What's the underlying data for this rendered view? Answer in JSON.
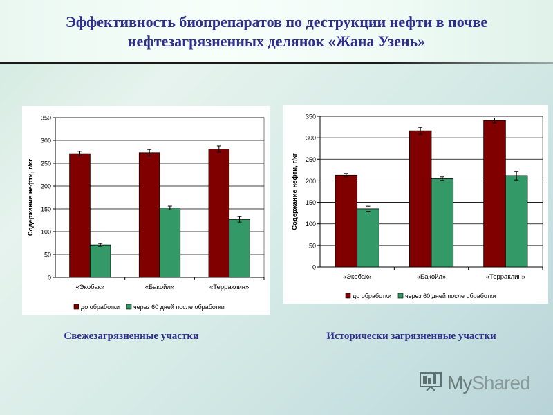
{
  "slide": {
    "title": "Эффективность биопрепаратов по деструкции нефти в почве нефтезагрязненных делянок «Жана Узень»",
    "caption_left": "Свежезагрязненные участки",
    "caption_right": "Исторически загрязненные участки",
    "logo": {
      "part1": "My",
      "part2": "Shared"
    }
  },
  "colors": {
    "before": "#800000",
    "after": "#339966"
  },
  "chart_data": [
    {
      "type": "bar",
      "categories": [
        "«Экобак»",
        "«Бакойл»",
        "«Терраклин»"
      ],
      "series": [
        {
          "name": "до обработки",
          "values": [
            271,
            273,
            281
          ],
          "errors": [
            5,
            7,
            7
          ]
        },
        {
          "name": "через 60 дней после обработки",
          "values": [
            71,
            152,
            127
          ],
          "errors": [
            3,
            4,
            6
          ]
        }
      ],
      "ylabel": "Содержание нефти, г/кг",
      "xlabel": "",
      "ylim": [
        0,
        350
      ],
      "yticks": [
        0,
        50,
        100,
        150,
        200,
        250,
        300,
        350
      ],
      "grid": true,
      "legend": "bottom"
    },
    {
      "type": "bar",
      "categories": [
        "«Экобак»",
        "«Бакойл»",
        "«Терраклин»"
      ],
      "series": [
        {
          "name": "до обработки",
          "values": [
            213,
            316,
            340
          ],
          "errors": [
            4,
            8,
            6
          ]
        },
        {
          "name": "через 60 дней после обработки",
          "values": [
            135,
            205,
            212
          ],
          "errors": [
            6,
            4,
            10
          ]
        }
      ],
      "ylabel": "Содержание нефти, г/кг",
      "xlabel": "",
      "ylim": [
        0,
        350
      ],
      "yticks": [
        0,
        50,
        100,
        150,
        200,
        250,
        300,
        350
      ],
      "grid": true,
      "legend": "bottom"
    }
  ]
}
